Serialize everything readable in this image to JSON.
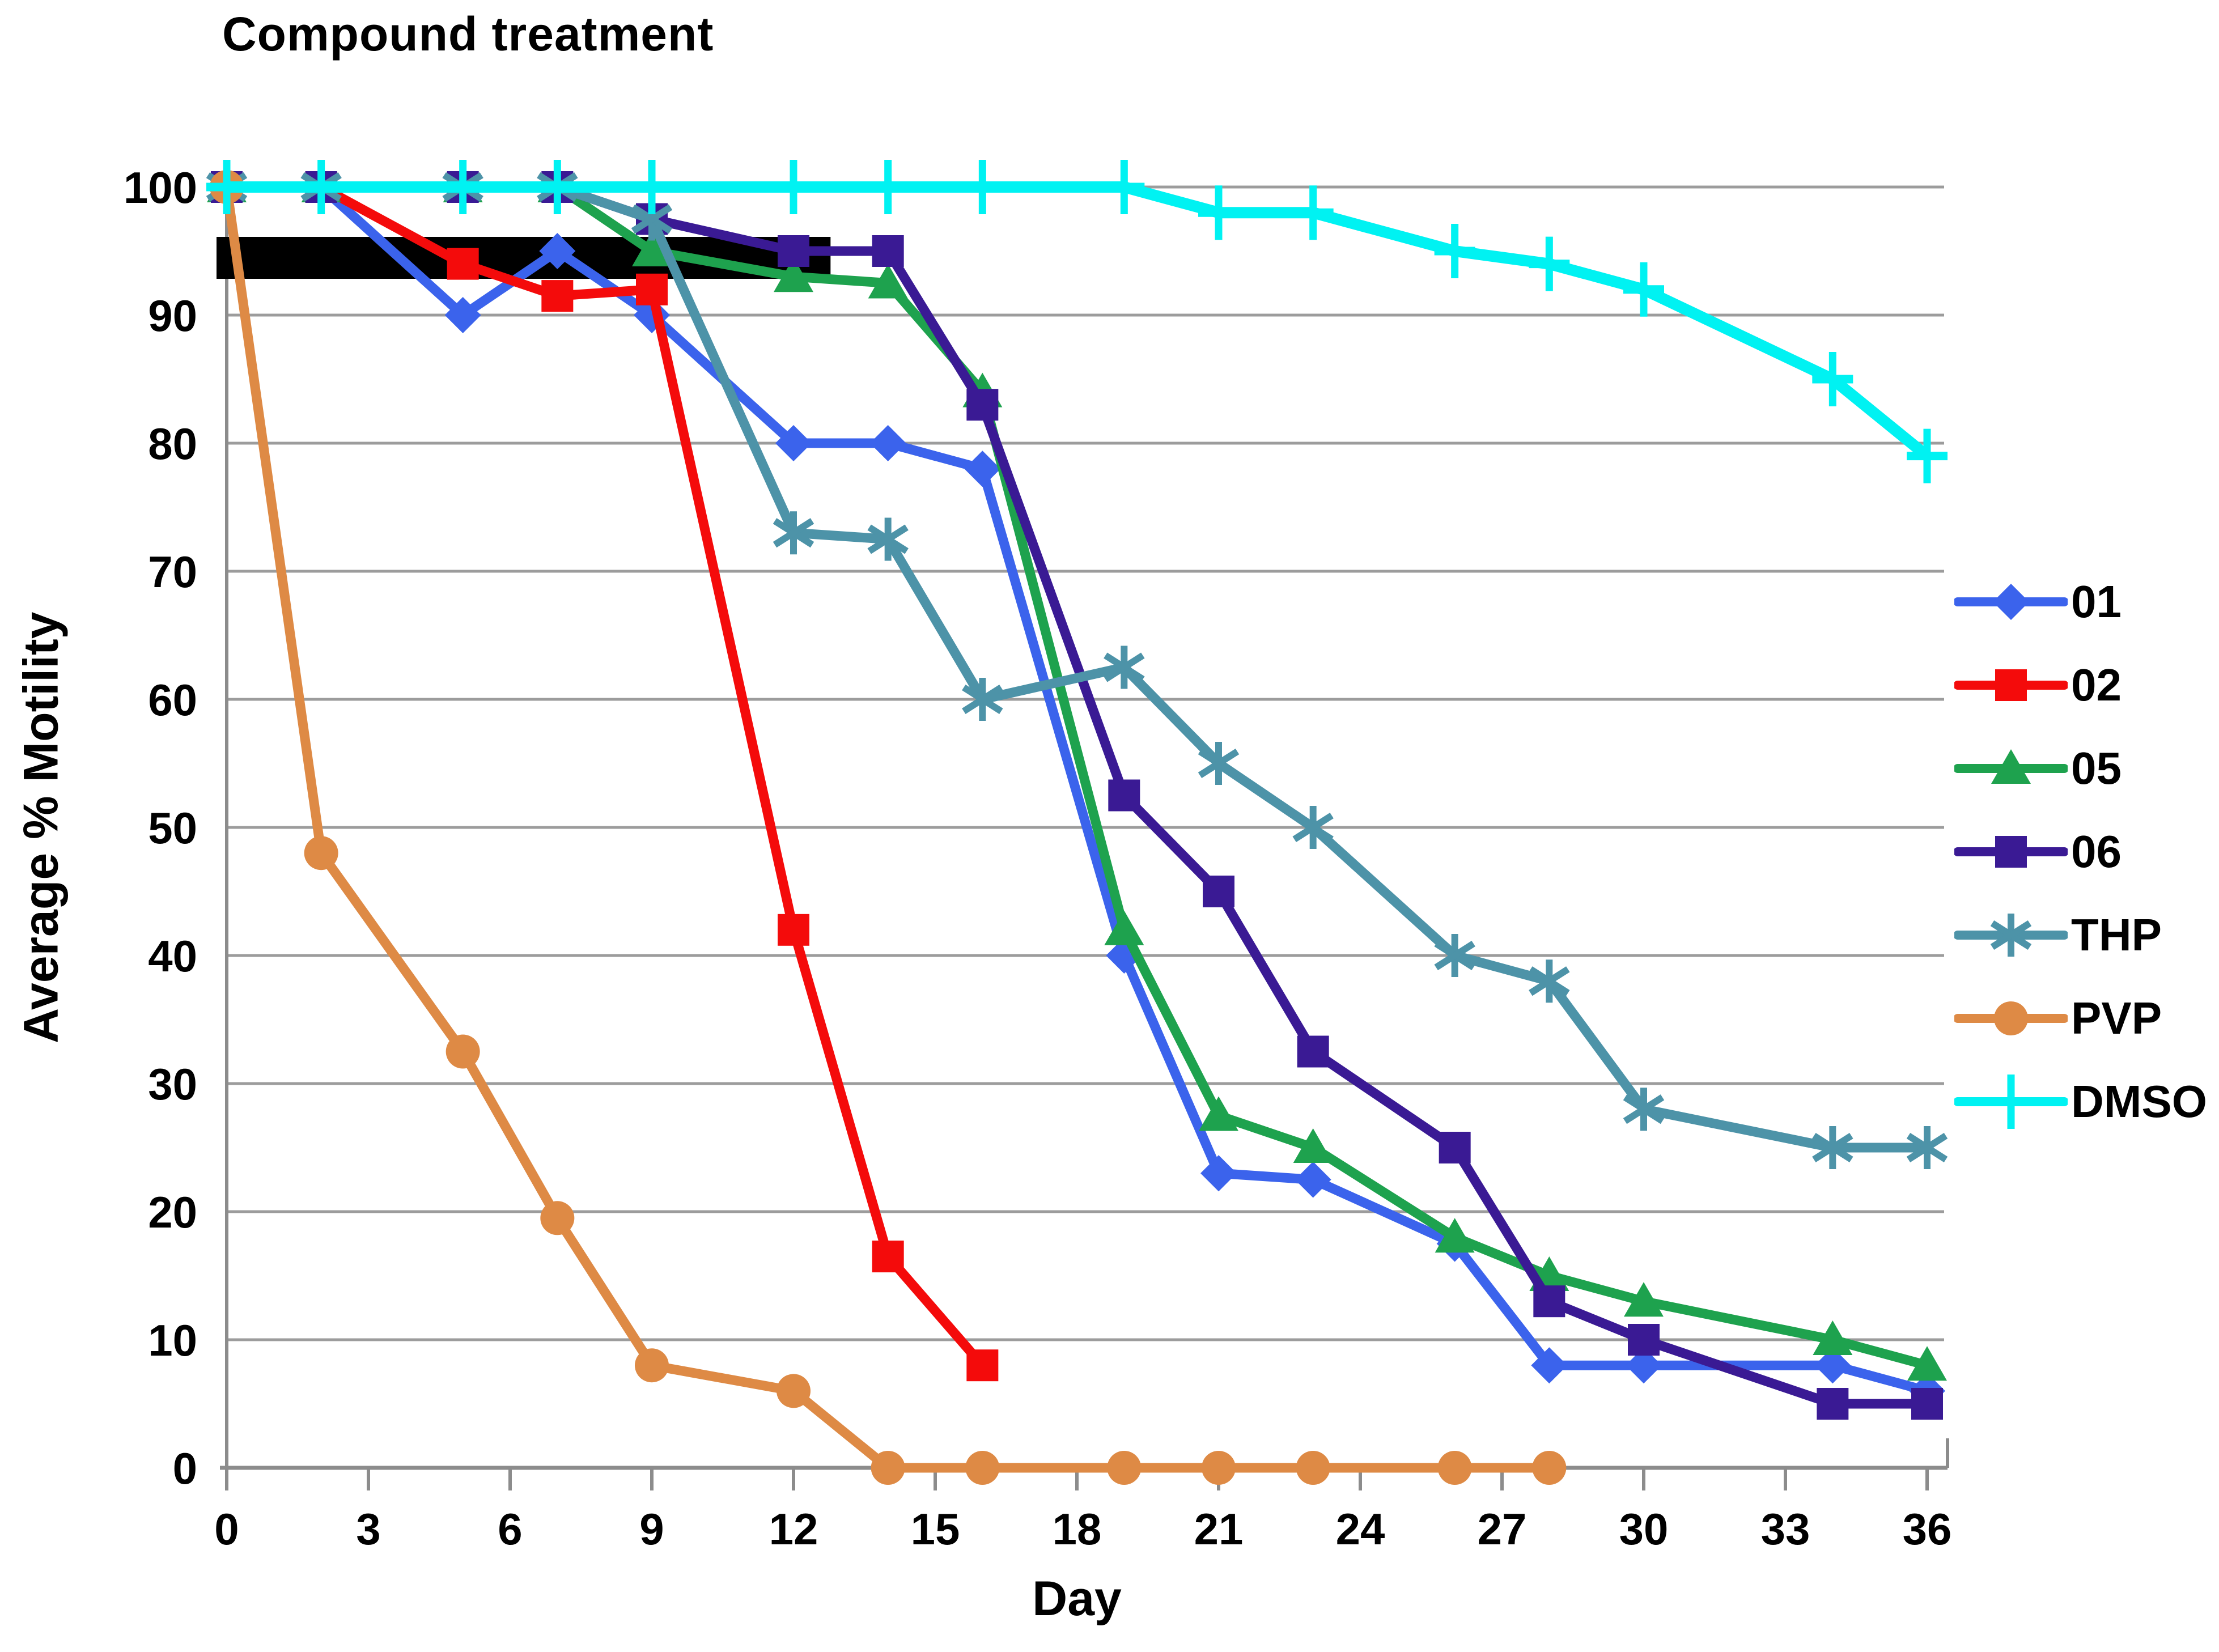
{
  "annotation": {
    "treatment_label": "Compound treatment"
  },
  "chart_data": {
    "type": "line",
    "title": "Compound treatment",
    "xlabel": "Day",
    "ylabel": "Average % Motility",
    "xlim": [
      0,
      36
    ],
    "ylim": [
      0,
      100
    ],
    "x_ticks": [
      0,
      3,
      6,
      9,
      12,
      15,
      18,
      21,
      24,
      27,
      30,
      33,
      36
    ],
    "y_ticks": [
      0,
      10,
      20,
      30,
      40,
      50,
      60,
      70,
      80,
      90,
      100
    ],
    "grid": "horizontal",
    "legend_position": "right",
    "treatment_bar": {
      "label": "Compound treatment",
      "day_start": 0,
      "day_end": 13
    },
    "x": [
      0,
      2,
      5,
      7,
      9,
      12,
      14,
      16,
      19,
      21,
      23,
      26,
      28,
      30,
      34,
      36
    ],
    "series": [
      {
        "name": "01",
        "color": "#3B63EC",
        "marker": "diamond",
        "values": [
          100,
          100,
          90,
          95,
          90,
          80,
          80,
          78,
          40,
          23,
          22.5,
          17.5,
          8,
          8,
          8,
          6
        ]
      },
      {
        "name": "02",
        "color": "#F40B0B",
        "marker": "square",
        "values": [
          100,
          100,
          94,
          91.5,
          92,
          42,
          16.5,
          8,
          null,
          null,
          null,
          null,
          null,
          null,
          null,
          null
        ]
      },
      {
        "name": "05",
        "color": "#1EA24E",
        "marker": "triangle",
        "values": [
          100,
          100,
          100,
          100,
          95,
          93,
          92.5,
          84,
          42,
          27.5,
          25,
          18,
          15,
          13,
          10,
          8
        ]
      },
      {
        "name": "06",
        "color": "#3A1A94",
        "marker": "square",
        "values": [
          100,
          100,
          100,
          100,
          97.5,
          95,
          95,
          83,
          52.5,
          45,
          32.5,
          25,
          13,
          10,
          5,
          5
        ]
      },
      {
        "name": "THP",
        "color": "#4D93A8",
        "marker": "asterisk",
        "values": [
          100,
          100,
          100,
          100,
          97.5,
          73,
          72.5,
          60,
          62.5,
          55,
          50,
          40,
          38,
          28,
          25,
          25
        ]
      },
      {
        "name": "PVP",
        "color": "#DE8A45",
        "marker": "circle",
        "values": [
          100,
          48,
          32.5,
          19.5,
          8,
          6,
          0,
          0,
          0,
          0,
          0,
          0,
          0,
          null,
          null,
          null
        ]
      },
      {
        "name": "DMSO",
        "color": "#00F2F2",
        "marker": "plus",
        "values": [
          100,
          100,
          100,
          100,
          100,
          100,
          100,
          100,
          100,
          98,
          98,
          95,
          94,
          92,
          85,
          79
        ]
      }
    ]
  }
}
